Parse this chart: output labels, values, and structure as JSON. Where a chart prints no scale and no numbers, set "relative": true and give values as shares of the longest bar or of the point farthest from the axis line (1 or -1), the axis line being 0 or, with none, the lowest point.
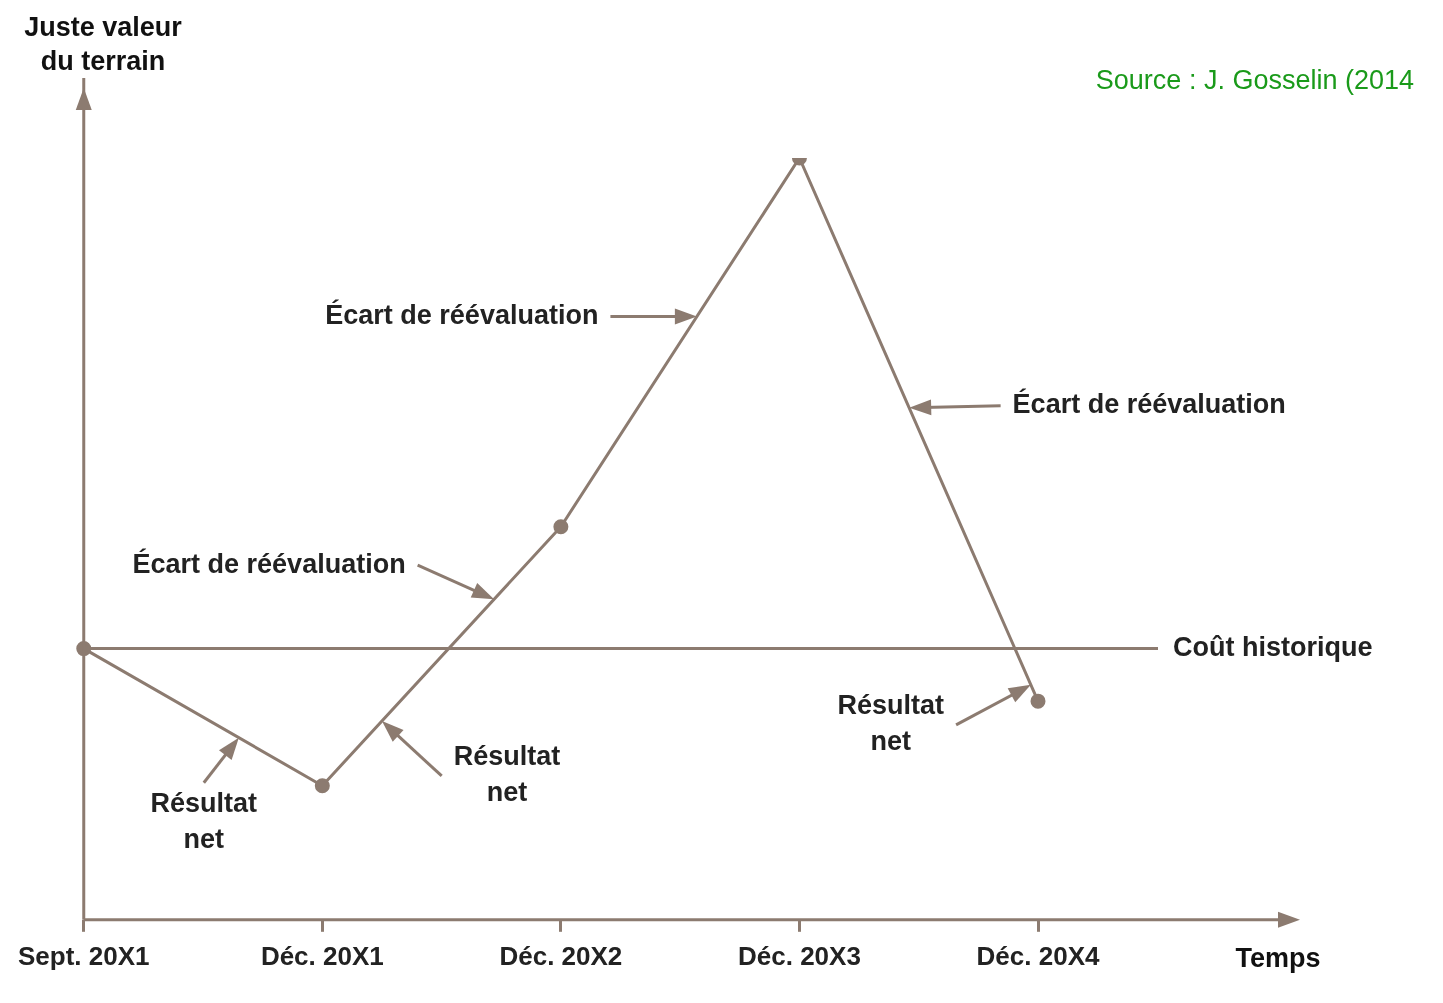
{
  "chart_data": {
    "type": "line",
    "relative": true,
    "ylabel": "Juste valeur du terrain",
    "xlabel": "Temps",
    "categories": [
      "Sept. 20X1",
      "Déc. 20X1",
      "Déc. 20X2",
      "Déc. 20X3",
      "Déc. 20X4"
    ],
    "series": [
      {
        "color": "#8c7b70",
        "values": [
          0.356,
          0.176,
          0.516,
          1,
          0.287
        ]
      }
    ],
    "marker": "circle",
    "line_style": "solid",
    "grid": false,
    "legend": false,
    "ref_lines": [
      {
        "axis": "y",
        "value": 0.356,
        "label": "Coût historique",
        "color": "#8c7b70"
      }
    ],
    "annotations": [
      "Écart de réévaluation",
      "Écart de réévaluation",
      "Écart de réévaluation",
      "Résultat net",
      "Résultat net",
      "Résultat net",
      "Source : J. Gosselin (2014"
    ]
  }
}
